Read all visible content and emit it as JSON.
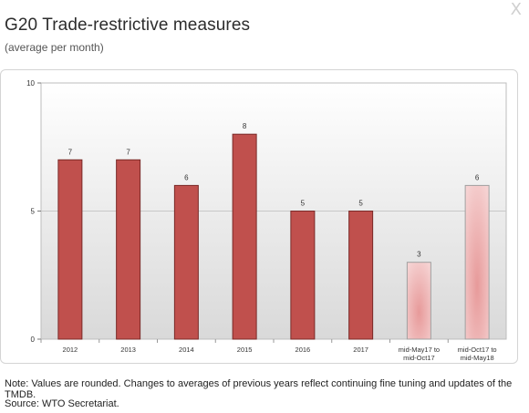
{
  "header": {
    "title": "G20 Trade-restrictive measures",
    "subtitle": "(average per month)",
    "close_label": "X"
  },
  "footer": {
    "note": "Note: Values are rounded. Changes to averages of previous years reflect continuing fine tuning and updates of the TMDB.",
    "source": "Source: WTO Secretariat."
  },
  "colors": {
    "bar_solid": "#c0504d",
    "bar_solid_edge": "#7a2a28",
    "bar_light": "#f6d3d3",
    "bar_light_center": "#e79a9a",
    "plot_bg_top": "#ffffff",
    "plot_bg_bottom": "#d9d9d9",
    "gridline": "#c8c8c8"
  },
  "chart_data": {
    "type": "bar",
    "title": "",
    "xlabel": "",
    "ylabel": "",
    "ylim": [
      0,
      10
    ],
    "yticks": [
      0,
      5,
      10
    ],
    "grid": true,
    "categories": [
      "2012",
      "2013",
      "2014",
      "2015",
      "2016",
      "2017",
      "mid-May17 to mid-Oct17",
      "mid-Oct17 to mid-May18"
    ],
    "category_lines": [
      [
        "2012"
      ],
      [
        "2013"
      ],
      [
        "2014"
      ],
      [
        "2015"
      ],
      [
        "2016"
      ],
      [
        "2017"
      ],
      [
        "mid-May17 to",
        "mid-Oct17"
      ],
      [
        "mid-Oct17 to",
        "mid-May18"
      ]
    ],
    "values": [
      7,
      7,
      6,
      8,
      5,
      5,
      3,
      6
    ],
    "styles": [
      "solid",
      "solid",
      "solid",
      "solid",
      "solid",
      "solid",
      "light",
      "light"
    ]
  }
}
